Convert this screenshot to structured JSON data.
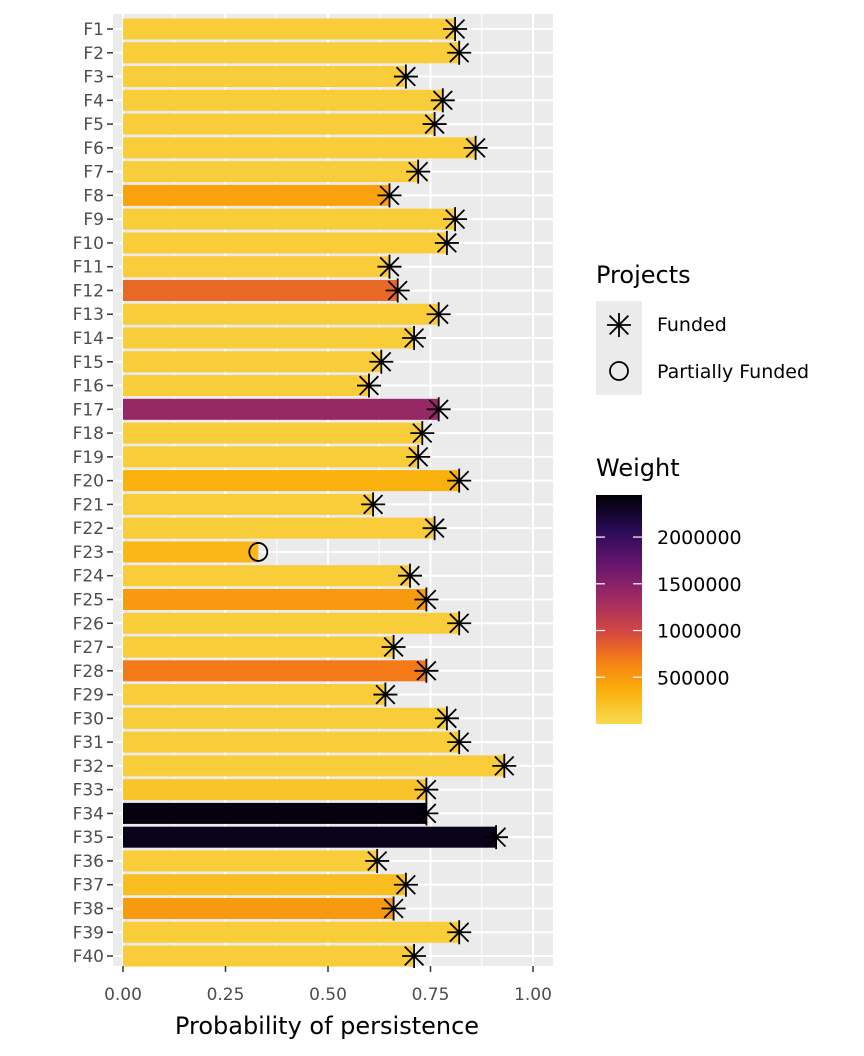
{
  "chart_data": {
    "type": "bar",
    "orientation": "horizontal",
    "xlabel": "Probability of persistence",
    "ylabel": "",
    "xlim": [
      0,
      1.05
    ],
    "x_ticks": [
      "0.00",
      "0.25",
      "0.50",
      "0.75",
      "1.00"
    ],
    "x_tick_values": [
      0,
      0.25,
      0.5,
      0.75,
      1.0
    ],
    "grid": true,
    "categories": [
      "F1",
      "F2",
      "F3",
      "F4",
      "F5",
      "F6",
      "F7",
      "F8",
      "F9",
      "F10",
      "F11",
      "F12",
      "F13",
      "F14",
      "F15",
      "F16",
      "F17",
      "F18",
      "F19",
      "F20",
      "F21",
      "F22",
      "F23",
      "F24",
      "F25",
      "F26",
      "F27",
      "F28",
      "F29",
      "F30",
      "F31",
      "F32",
      "F33",
      "F34",
      "F35",
      "F36",
      "F37",
      "F38",
      "F39",
      "F40"
    ],
    "values": [
      0.81,
      0.82,
      0.69,
      0.78,
      0.76,
      0.86,
      0.72,
      0.65,
      0.81,
      0.79,
      0.65,
      0.67,
      0.77,
      0.71,
      0.63,
      0.6,
      0.77,
      0.73,
      0.72,
      0.82,
      0.61,
      0.76,
      0.33,
      0.7,
      0.74,
      0.82,
      0.66,
      0.74,
      0.64,
      0.79,
      0.82,
      0.93,
      0.74,
      0.74,
      0.91,
      0.62,
      0.69,
      0.66,
      0.82,
      0.71
    ],
    "weights": [
      120000,
      120000,
      120000,
      120000,
      120000,
      120000,
      120000,
      450000,
      120000,
      120000,
      120000,
      800000,
      120000,
      120000,
      120000,
      120000,
      1400000,
      120000,
      120000,
      350000,
      120000,
      120000,
      300000,
      120000,
      500000,
      120000,
      120000,
      700000,
      120000,
      120000,
      120000,
      120000,
      200000,
      2400000,
      2350000,
      120000,
      250000,
      500000,
      120000,
      120000
    ],
    "projects": [
      "Funded",
      "Funded",
      "Funded",
      "Funded",
      "Funded",
      "Funded",
      "Funded",
      "Funded",
      "Funded",
      "Funded",
      "Funded",
      "Funded",
      "Funded",
      "Funded",
      "Funded",
      "Funded",
      "Funded",
      "Funded",
      "Funded",
      "Funded",
      "Funded",
      "Funded",
      "Partially Funded",
      "Funded",
      "Funded",
      "Funded",
      "Funded",
      "Funded",
      "Funded",
      "Funded",
      "Funded",
      "Funded",
      "Funded",
      "Funded",
      "Funded",
      "Funded",
      "Funded",
      "Funded",
      "Funded",
      "Funded"
    ],
    "legend_projects": {
      "title": "Projects",
      "entries": [
        "Funded",
        "Partially Funded"
      ],
      "placement": "right"
    },
    "legend_weight": {
      "title": "Weight",
      "ticks": [
        "2000000",
        "1500000",
        "1000000",
        "500000"
      ],
      "tick_values": [
        2000000,
        1500000,
        1000000,
        500000
      ],
      "range": [
        0,
        2450000
      ],
      "colormap": "inferno",
      "placement": "right"
    },
    "colors": {
      "panel_bg": "#ebebeb",
      "grid": "#ffffff",
      "marker": "#000000"
    }
  }
}
